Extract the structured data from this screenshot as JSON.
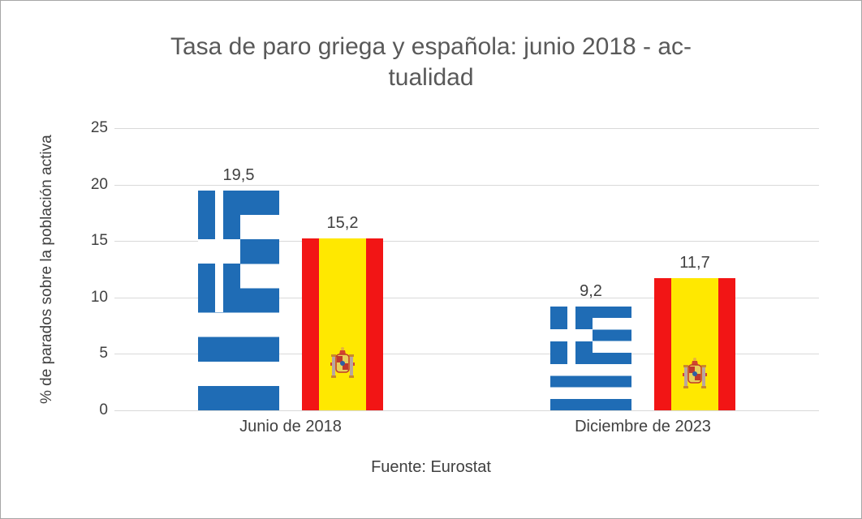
{
  "title": {
    "lines": [
      "Tasa de paro griega y española: junio 2018 - ac-",
      "tualidad"
    ]
  },
  "y_axis": {
    "label": "% de parados sobre la población activa",
    "ticks": [
      "0",
      "5",
      "10",
      "15",
      "20",
      "25"
    ]
  },
  "footer": "Fuente: Eurostat",
  "chart_data": {
    "type": "bar",
    "title": "Tasa de paro griega y española: junio 2018 - actualidad",
    "categories": [
      "Junio de 2018",
      "Diciembre de 2023"
    ],
    "series": [
      {
        "name": "Grecia",
        "flag_icon": "greece-flag-icon",
        "values": [
          19.5,
          9.2
        ],
        "labels": [
          "19,5",
          "9,2"
        ]
      },
      {
        "name": "España",
        "flag_icon": "spain-flag-icon",
        "values": [
          15.2,
          11.7
        ],
        "labels": [
          "15,2",
          "11,7"
        ]
      }
    ],
    "xlabel": "",
    "ylabel": "% de parados sobre la población activa",
    "ylim": [
      0,
      25
    ],
    "grid": true,
    "source": "Fuente: Eurostat",
    "colors": {
      "greek_blue": "#1f6cb5",
      "spain_red": "#f21515",
      "spain_yellow": "#ffe800"
    }
  }
}
